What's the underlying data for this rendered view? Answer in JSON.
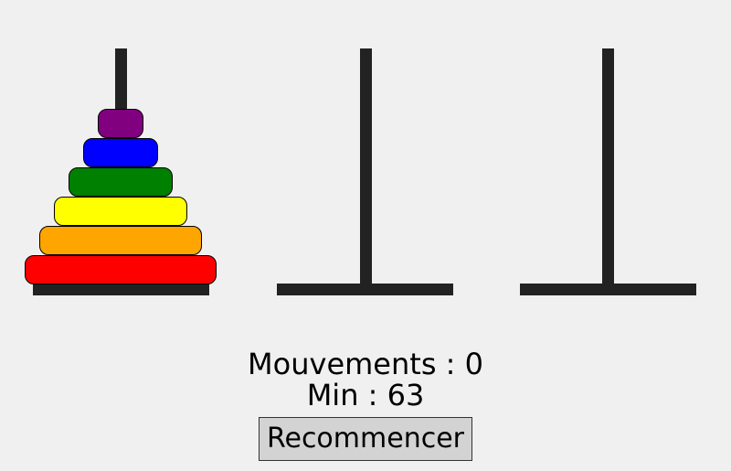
{
  "colors": {
    "background": "#f0f0f0",
    "tower": "#222222",
    "disk_border": "#000000"
  },
  "game": {
    "towers": [
      {
        "disks": [
          {
            "color": "#ff0000"
          },
          {
            "color": "#ffa500"
          },
          {
            "color": "#ffff00"
          },
          {
            "color": "#008000"
          },
          {
            "color": "#0000ff"
          },
          {
            "color": "#800080"
          }
        ]
      },
      {
        "disks": []
      },
      {
        "disks": []
      }
    ]
  },
  "status": {
    "moves_label": "Mouvements : 0",
    "min_label": "Min : 63"
  },
  "controls": {
    "restart_label": "Recommencer"
  }
}
